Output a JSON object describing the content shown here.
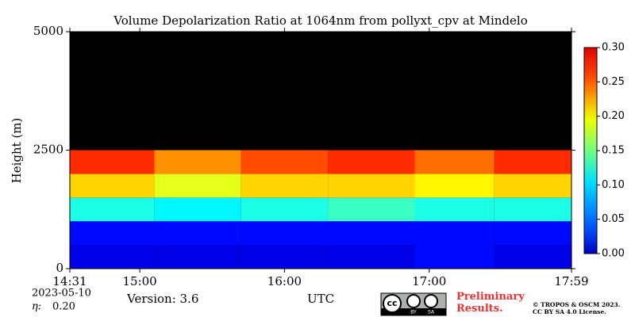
{
  "chart_data": {
    "type": "heatmap",
    "title": "Volume Depolarization Ratio at 1064nm from pollyxt_cpv at Mindelo",
    "ylabel": "Height (m)",
    "xlabel": "UTC",
    "xlim": [
      14.5167,
      17.9833
    ],
    "xticks": [
      {
        "value": 14.5167,
        "label": "14:31"
      },
      {
        "value": 15,
        "label": "15:00"
      },
      {
        "value": 16,
        "label": "16:00"
      },
      {
        "value": 17,
        "label": "17:00"
      },
      {
        "value": 17.9833,
        "label": "17:59"
      }
    ],
    "ylim": [
      0,
      5000
    ],
    "yticks": [
      0,
      2500,
      5000
    ],
    "x_bins": [
      14.5167,
      15.1,
      15.7,
      16.3,
      16.9,
      17.45,
      17.9833
    ],
    "y_bins": [
      0,
      500,
      1000,
      1500,
      2000,
      2500,
      3000,
      3500,
      4000,
      4500,
      5000
    ],
    "z": [
      [
        0.03,
        0.03,
        0.03,
        0.03,
        0.04,
        0.03
      ],
      [
        0.04,
        0.04,
        0.04,
        0.04,
        0.04,
        0.04
      ],
      [
        0.12,
        0.11,
        0.12,
        0.13,
        0.12,
        0.12
      ],
      [
        0.2,
        0.18,
        0.2,
        0.2,
        0.19,
        0.2
      ],
      [
        0.25,
        0.22,
        0.24,
        0.25,
        0.23,
        0.25
      ],
      [
        null,
        null,
        null,
        null,
        null,
        null
      ],
      [
        null,
        null,
        null,
        null,
        null,
        null
      ],
      [
        null,
        null,
        null,
        null,
        null,
        null
      ],
      [
        null,
        null,
        null,
        null,
        null,
        null
      ],
      [
        null,
        null,
        null,
        null,
        null,
        null
      ]
    ],
    "zlim": [
      0,
      0.3
    ],
    "zticks": [
      {
        "value": 0,
        "label": "0.00"
      },
      {
        "value": 0.05,
        "label": "0.05"
      },
      {
        "value": 0.1,
        "label": "0.10"
      },
      {
        "value": 0.15,
        "label": "0.15"
      },
      {
        "value": 0.2,
        "label": "0.20"
      },
      {
        "value": 0.25,
        "label": "0.25"
      },
      {
        "value": 0.3,
        "label": "0.30"
      }
    ],
    "colormap": "jet",
    "date": "2023-05-10",
    "eta_label": "η:",
    "eta_value": "0.20",
    "version": "Version: 3.6",
    "notice": "Preliminary Results.",
    "badge": [
      "cc",
      "BY",
      "SA"
    ],
    "copyright": "© TROPOS & OSCM 2023.",
    "license": "CC BY SA 4.0 License."
  }
}
